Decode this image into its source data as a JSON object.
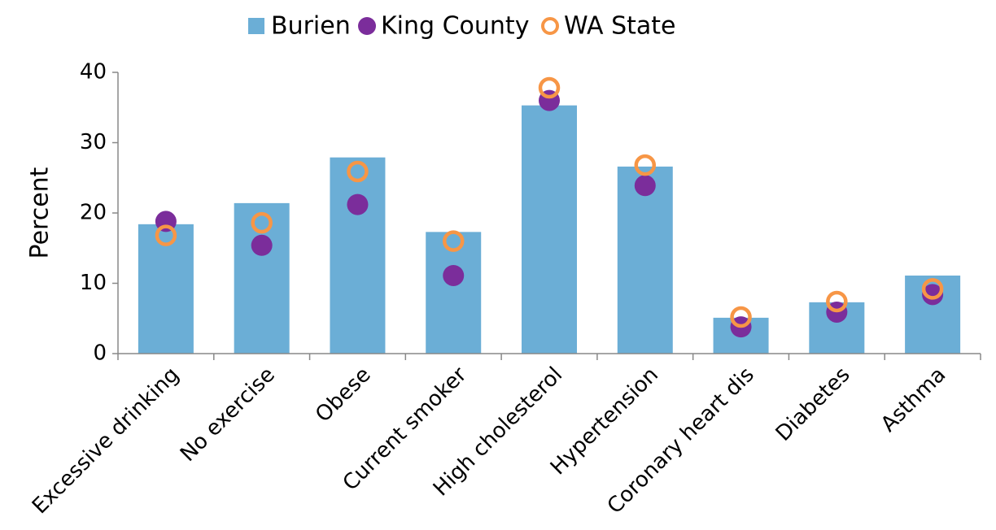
{
  "chart_data": {
    "type": "bar",
    "categories": [
      "Excessive drinking",
      "No exercise",
      "Obese",
      "Current smoker",
      "High cholesterol",
      "Hypertension",
      "Coronary heart dis",
      "Diabetes",
      "Asthma"
    ],
    "series": [
      {
        "name": "Burien",
        "color": "#6baed6",
        "mark": "bar",
        "values": [
          18.4,
          21.4,
          27.9,
          17.3,
          35.3,
          26.6,
          5.1,
          7.3,
          11.1
        ]
      },
      {
        "name": "King County",
        "color": "#7b2d9b",
        "mark": "dot",
        "values": [
          18.8,
          15.4,
          21.2,
          11.1,
          36.0,
          23.9,
          3.8,
          5.9,
          8.4
        ]
      },
      {
        "name": "WA State",
        "color": "#f79646",
        "mark": "ring",
        "values": [
          16.8,
          18.6,
          25.9,
          16.0,
          37.8,
          26.8,
          5.2,
          7.4,
          9.2
        ]
      }
    ],
    "y_label": "Percent",
    "ylim": [
      0,
      40
    ],
    "yticks": [
      0,
      10,
      20,
      30,
      40
    ],
    "grid": false,
    "legend": "top"
  }
}
